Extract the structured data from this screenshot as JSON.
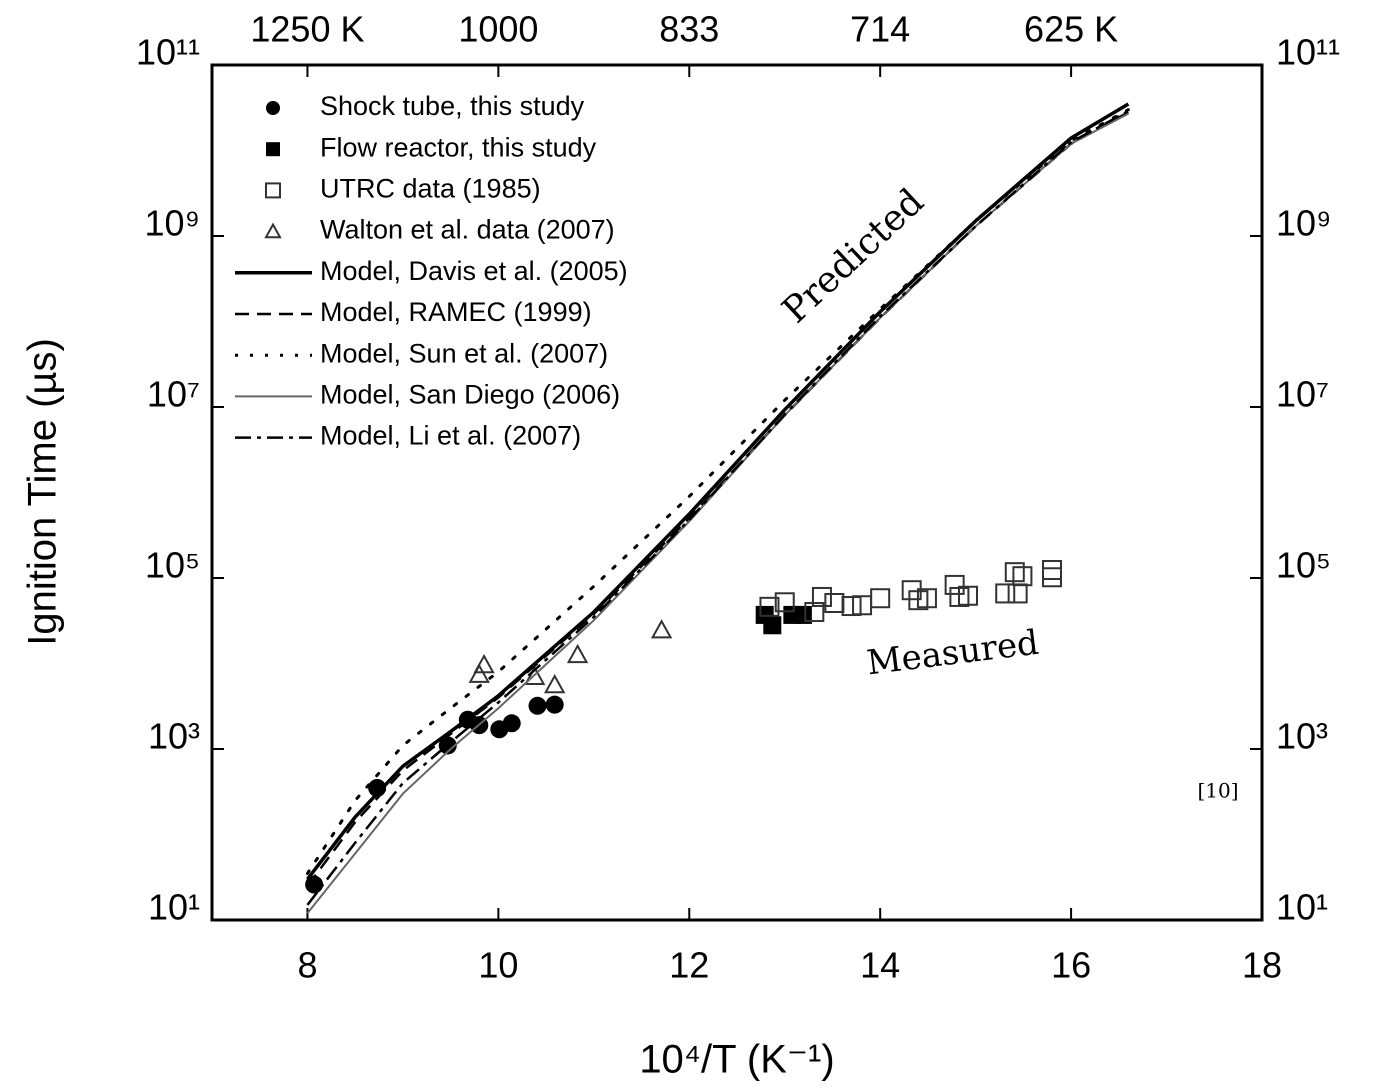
{
  "chart_data": {
    "type": "scatter",
    "y_label": "Ignition Time (µs)",
    "x_label": "10⁴/T (K⁻¹)",
    "xlim": [
      7,
      18
    ],
    "xticks": [
      8,
      10,
      12,
      14,
      16,
      18
    ],
    "x2ticks": [
      {
        "value": 8,
        "label": "1250 K"
      },
      {
        "value": 10,
        "label": "1000"
      },
      {
        "value": 12,
        "label": "833"
      },
      {
        "value": 14,
        "label": "714"
      },
      {
        "value": 16,
        "label": "625 K"
      }
    ],
    "ylim": [
      10,
      100000000000
    ],
    "yticks": [
      {
        "value": 10,
        "label": "10¹"
      },
      {
        "value": 1000,
        "label": "10³"
      },
      {
        "value": 100000,
        "label": "10⁵"
      },
      {
        "value": 10000000,
        "label": "10⁷"
      },
      {
        "value": 1000000000,
        "label": "10⁹"
      },
      {
        "value": 100000000000,
        "label": "10¹¹"
      }
    ],
    "log_y": true,
    "legend": "upper left",
    "annotations": [
      {
        "text": "Predicted",
        "color": "#1a9ad6"
      },
      {
        "text": "Measured",
        "color": "#e020c8"
      },
      {
        "text": "[10]",
        "color": "#000000"
      }
    ],
    "series": [
      {
        "name": "Shock tube, this study",
        "marker": "circle",
        "color": "#000000",
        "x": [
          8.07,
          8.73,
          9.47,
          9.68,
          9.8,
          10.01,
          10.14,
          10.41,
          10.59
        ],
        "values": [
          26,
          350,
          1100,
          2200,
          1900,
          1700,
          2000,
          3200,
          3300
        ]
      },
      {
        "name": "Flow reactor, this study",
        "marker": "square",
        "color": "#000000",
        "x": [
          12.79,
          12.87,
          13.08,
          13.19
        ],
        "values": [
          37000,
          28000,
          37000,
          37000
        ]
      },
      {
        "name": "UTRC data (1985)",
        "marker": "open-square",
        "color": "#333333",
        "x": [
          12.84,
          13.0,
          13.31,
          13.39,
          13.52,
          13.7,
          13.81,
          14.0,
          14.33,
          14.4,
          14.49,
          14.78,
          14.83,
          14.92,
          15.31,
          15.44,
          15.41,
          15.49,
          15.8,
          15.8
        ],
        "values": [
          46000,
          52000,
          40000,
          60000,
          51000,
          47000,
          48000,
          58000,
          72000,
          55000,
          58000,
          83000,
          60000,
          62000,
          66000,
          66000,
          117000,
          105000,
          124000,
          102000
        ]
      },
      {
        "name": "Walton et al. data (2007)",
        "marker": "triangle",
        "color": "#333333",
        "x": [
          9.8,
          9.85,
          10.38,
          10.59,
          10.83,
          11.71
        ],
        "values": [
          7400,
          9600,
          7000,
          5600,
          12600,
          24500
        ]
      },
      {
        "name": "Model, Davis et al. (2005)",
        "line": "solid",
        "color": "#000000",
        "x": [
          8,
          8.5,
          9,
          9.5,
          10,
          11,
          12,
          13,
          14,
          15,
          16,
          16.6
        ],
        "values": [
          30,
          160,
          630,
          1600,
          4200,
          40000,
          560000,
          9300000,
          130000000,
          1500000000,
          14000000000,
          35000000000
        ]
      },
      {
        "name": "Model, RAMEC (1999)",
        "line": "dashed",
        "color": "#000000",
        "x": [
          8,
          8.5,
          9,
          9.5,
          10,
          11,
          12,
          13,
          14,
          15,
          16,
          16.6
        ],
        "values": [
          25,
          140,
          560,
          1500,
          4000,
          38000,
          500000,
          8000000,
          110000000,
          1300000000,
          12000000000,
          28000000000
        ]
      },
      {
        "name": "Model, Sun et al. (2007)",
        "line": "dotted",
        "color": "#000000",
        "x": [
          8,
          8.5,
          9,
          9.5,
          10,
          11,
          12,
          13,
          14,
          15,
          16,
          16.6
        ],
        "values": [
          35,
          250,
          1100,
          3000,
          8000,
          80000,
          900000,
          12000000,
          140000000,
          1500000000,
          13000000000,
          30000000000
        ]
      },
      {
        "name": "Model, San Diego (2006)",
        "line": "thin",
        "color": "#666666",
        "x": [
          8,
          8.5,
          9,
          9.5,
          10,
          11,
          12,
          13,
          14,
          15,
          16,
          16.6
        ],
        "values": [
          12,
          60,
          300,
          1000,
          3000,
          32000,
          460000,
          8000000,
          110000000,
          1300000000,
          12000000000,
          27000000000
        ]
      },
      {
        "name": "Model, Li et al. (2007)",
        "line": "dashdot",
        "color": "#000000",
        "x": [
          8,
          8.5,
          9,
          9.5,
          10,
          11,
          12,
          13,
          14,
          15,
          16,
          16.6
        ],
        "values": [
          15,
          80,
          400,
          1200,
          3500,
          35000,
          480000,
          8200000,
          115000000,
          1300000000,
          12500000000,
          29000000000
        ]
      }
    ]
  }
}
